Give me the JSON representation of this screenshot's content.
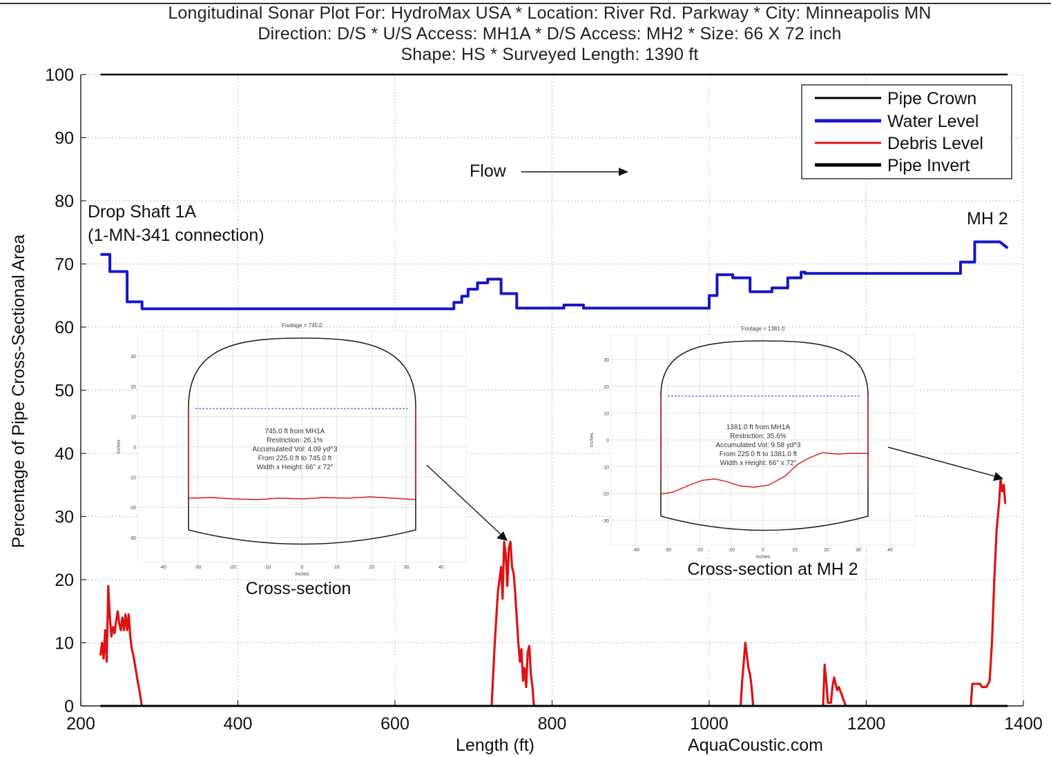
{
  "header": {
    "title_lines": [
      "Longitudinal Sonar Plot For: HydroMax USA * Location: River Rd. Parkway * City: Minneapolis MN",
      "Direction: D/S * U/S Access: MH1A * D/S Access: MH2 * Size: 66 X 72 inch",
      "Shape: HS * Surveyed Length: 1390 ft"
    ]
  },
  "chart_data": {
    "type": "line",
    "xlabel": "Length (ft)",
    "ylabel": "Percentage of Pipe Cross-Sectional Area",
    "xlim": [
      200,
      1400
    ],
    "ylim": [
      0,
      100
    ],
    "x_ticks": [
      200,
      400,
      600,
      800,
      1000,
      1200,
      1400
    ],
    "y_ticks": [
      0,
      10,
      20,
      30,
      40,
      50,
      60,
      70,
      80,
      90,
      100
    ],
    "grid": true,
    "legend_position": "top-right",
    "series": [
      {
        "name": "Pipe Crown",
        "color": "#000000",
        "points": [
          [
            225,
            100
          ],
          [
            1380,
            100
          ]
        ]
      },
      {
        "name": "Water Level",
        "color": "#1515c8",
        "points": [
          [
            225,
            71.5
          ],
          [
            237,
            71.5
          ],
          [
            237,
            68.8
          ],
          [
            259,
            68.8
          ],
          [
            259,
            64
          ],
          [
            278,
            64
          ],
          [
            278,
            62.9
          ],
          [
            675,
            62.9
          ],
          [
            675,
            63.9
          ],
          [
            685,
            63.9
          ],
          [
            685,
            64.9
          ],
          [
            693,
            64.9
          ],
          [
            693,
            66
          ],
          [
            705,
            66
          ],
          [
            705,
            67
          ],
          [
            718,
            67
          ],
          [
            718,
            67.6
          ],
          [
            735,
            67.6
          ],
          [
            735,
            65.3
          ],
          [
            755,
            65.3
          ],
          [
            755,
            63
          ],
          [
            815,
            63
          ],
          [
            815,
            63.5
          ],
          [
            840,
            63.5
          ],
          [
            840,
            63
          ],
          [
            1000,
            63
          ],
          [
            1000,
            65
          ],
          [
            1010,
            65
          ],
          [
            1010,
            68.3
          ],
          [
            1030,
            68.3
          ],
          [
            1030,
            67.8
          ],
          [
            1052,
            67.8
          ],
          [
            1052,
            65.6
          ],
          [
            1080,
            65.6
          ],
          [
            1080,
            66.2
          ],
          [
            1100,
            66.2
          ],
          [
            1100,
            67.8
          ],
          [
            1117,
            67.8
          ],
          [
            1117,
            68.7
          ],
          [
            1122,
            68.7
          ],
          [
            1122,
            68.5
          ],
          [
            1320,
            68.5
          ],
          [
            1320,
            70.3
          ],
          [
            1338,
            70.3
          ],
          [
            1338,
            73.5
          ],
          [
            1370,
            73.5
          ],
          [
            1380,
            72.5
          ]
        ]
      },
      {
        "name": "Debris Level",
        "color": "#dd1212",
        "segments": [
          [
            [
              225,
              8
            ],
            [
              227,
              10
            ],
            [
              229,
              7.5
            ],
            [
              231,
              12
            ],
            [
              233,
              7
            ],
            [
              235,
              19
            ],
            [
              237,
              14
            ],
            [
              239,
              11
            ],
            [
              241,
              12.5
            ],
            [
              243,
              11.5
            ],
            [
              245,
              13.5
            ],
            [
              247,
              15
            ],
            [
              249,
              13
            ],
            [
              251,
              12
            ],
            [
              253,
              14
            ],
            [
              255,
              12
            ],
            [
              257,
              14.5
            ],
            [
              259,
              12
            ],
            [
              261,
              14.5
            ],
            [
              263,
              11
            ],
            [
              265,
              9
            ],
            [
              267,
              8
            ],
            [
              269,
              6.5
            ],
            [
              271,
              5
            ],
            [
              273,
              3.5
            ],
            [
              275,
              2.2
            ],
            [
              277,
              0.5
            ],
            [
              278,
              0
            ]
          ],
          [
            [
              723,
              0
            ],
            [
              725,
              5
            ],
            [
              727,
              10
            ],
            [
              729,
              14
            ],
            [
              731,
              18
            ],
            [
              733,
              20
            ],
            [
              735,
              22
            ],
            [
              737,
              17
            ],
            [
              739,
              26
            ],
            [
              741,
              24
            ],
            [
              743,
              19
            ],
            [
              745,
              25
            ],
            [
              747,
              26
            ],
            [
              749,
              22
            ],
            [
              751,
              21
            ],
            [
              753,
              18
            ],
            [
              755,
              14
            ],
            [
              757,
              10
            ],
            [
              759,
              7
            ],
            [
              761,
              9
            ],
            [
              763,
              4
            ],
            [
              765,
              6
            ],
            [
              767,
              3
            ],
            [
              769,
              8.5
            ],
            [
              771,
              9.5
            ],
            [
              773,
              5
            ],
            [
              775,
              3
            ],
            [
              777,
              0
            ]
          ],
          [
            [
              1040,
              0
            ],
            [
              1042,
              4
            ],
            [
              1044,
              7
            ],
            [
              1046,
              10
            ],
            [
              1048,
              8
            ],
            [
              1050,
              6
            ],
            [
              1052,
              5
            ],
            [
              1054,
              3
            ],
            [
              1056,
              0
            ]
          ],
          [
            [
              1145,
              0
            ],
            [
              1147,
              6.5
            ],
            [
              1149,
              4
            ],
            [
              1151,
              0.5
            ],
            [
              1155,
              0.5
            ],
            [
              1157,
              3
            ],
            [
              1159,
              4.5
            ],
            [
              1161,
              3.5
            ],
            [
              1163,
              2.5
            ],
            [
              1165,
              3
            ],
            [
              1168,
              2
            ],
            [
              1171,
              1
            ],
            [
              1174,
              0
            ]
          ],
          [
            [
              1333,
              0
            ],
            [
              1335,
              3.5
            ],
            [
              1345,
              3.5
            ],
            [
              1347,
              3
            ],
            [
              1353,
              3
            ],
            [
              1357,
              4
            ],
            [
              1360,
              10
            ],
            [
              1363,
              20
            ],
            [
              1366,
              28
            ],
            [
              1369,
              32
            ],
            [
              1371,
              36
            ],
            [
              1373,
              34
            ],
            [
              1375,
              35
            ],
            [
              1377,
              32
            ]
          ]
        ]
      },
      {
        "name": "Pipe Invert",
        "color": "#000000",
        "points": [
          [
            225,
            0
          ],
          [
            1380,
            0
          ]
        ]
      }
    ],
    "annotations": {
      "drop_shaft_line1": "Drop Shaft 1A",
      "drop_shaft_line2": "(1-MN-341 connection)",
      "mh2": "MH 2",
      "flow": "Flow",
      "inset1_caption": "Cross-section",
      "inset2_caption": "Cross-section at MH 2",
      "watermark": "AquaCoustic.com"
    },
    "insets": [
      {
        "title": "Footage = 745.0",
        "x_ticks": [
          -40,
          -30,
          -20,
          -10,
          0,
          10,
          20,
          30,
          40
        ],
        "y_ticks": [
          30,
          20,
          10,
          0,
          -10,
          -20,
          -30
        ],
        "xlabel": "Inches",
        "ylabel": "Inches",
        "info": [
          "745.0 ft from MH1A",
          "Restriction: 26.1%",
          "Accumulated Vol: 4.09 yd^3",
          "From 225.0 ft to 745.0 ft",
          "Width x Height: 66\" x 72\""
        ]
      },
      {
        "title": "Footage = 1381.0",
        "x_ticks": [
          -40,
          -30,
          -20,
          -10,
          0,
          10,
          20,
          30,
          40
        ],
        "y_ticks": [
          30,
          20,
          10,
          0,
          -10,
          -20,
          -30
        ],
        "xlabel": "Inches",
        "ylabel": "Inches",
        "info": [
          "1381.0 ft from MH1A",
          "Restriction: 35.6%",
          "Accumulated Vol: 9.58 yd^3",
          "From 225.0 ft to 1381.0 ft",
          "Width x Height: 66\" x 72\""
        ]
      }
    ]
  }
}
